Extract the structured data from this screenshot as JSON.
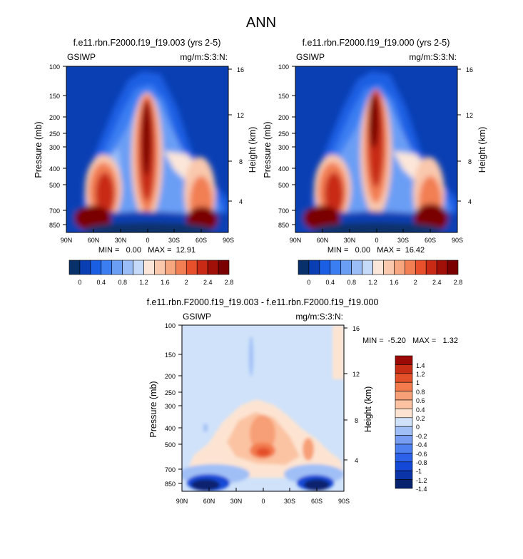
{
  "page_title": "ANN",
  "colors": {
    "field_levels": [
      "#08306b",
      "#0a3fb4",
      "#1a5ee3",
      "#3a7ef2",
      "#6a9ef5",
      "#9abdf7",
      "#c5daf9",
      "#fbe6d9",
      "#f9c8ad",
      "#f7a77f",
      "#f27e53",
      "#e8502c",
      "#c82a16",
      "#a01008",
      "#7a0000"
    ],
    "diff_levels": [
      "#08236e",
      "#0a34a8",
      "#1448d6",
      "#2c62ea",
      "#4e80f0",
      "#779ef3",
      "#a0bff6",
      "#cfe2fa",
      "#fde4d2",
      "#fbc3a2",
      "#f79f76",
      "#f27a4d",
      "#e4502a",
      "#c72d14",
      "#9b0a06"
    ]
  },
  "chart_data": [
    {
      "type": "contour",
      "id": "control",
      "title": "f.e11.rbn.F2000.f19_f19.003 (yrs 2-5)",
      "left_label": "GSIWP",
      "right_label": "mg/m:S:3:N:",
      "x_tick_labels": [
        "90N",
        "60N",
        "30N",
        "0",
        "30S",
        "60S",
        "90S"
      ],
      "pressure_levels": [
        100,
        150,
        200,
        250,
        300,
        400,
        500,
        700,
        850
      ],
      "pressure_labels": [
        "100",
        "150",
        "200",
        "250",
        "300",
        "400",
        "500",
        "700",
        "850"
      ],
      "height_ticks_km": [
        4,
        8,
        12,
        16
      ],
      "height_labels": [
        "4",
        "8",
        "12",
        "16"
      ],
      "ylabel": "Pressure (mb)",
      "ylabel_right": "Height (km)",
      "stats": "MIN =   0.00   MAX =  12.91",
      "colorbar_labels": [
        "0",
        "0.4",
        "0.8",
        "1.2",
        "1.6",
        "2",
        "2.4",
        "2.8"
      ]
    },
    {
      "type": "contour",
      "id": "test",
      "title": "f.e11.rbn.F2000.f19_f19.000 (yrs 2-5)",
      "left_label": "GSIWP",
      "right_label": "mg/m:S:3:N:",
      "x_tick_labels": [
        "90N",
        "60N",
        "30N",
        "0",
        "30S",
        "60S",
        "90S"
      ],
      "pressure_levels": [
        100,
        150,
        200,
        250,
        300,
        400,
        500,
        700,
        850
      ],
      "pressure_labels": [
        "100",
        "150",
        "200",
        "250",
        "300",
        "400",
        "500",
        "700",
        "850"
      ],
      "height_ticks_km": [
        4,
        8,
        12,
        16
      ],
      "height_labels": [
        "4",
        "8",
        "12",
        "16"
      ],
      "ylabel": "Pressure (mb)",
      "ylabel_right": "Height (km)",
      "stats": "MIN =   0.00   MAX =  16.42",
      "colorbar_labels": [
        "0",
        "0.4",
        "0.8",
        "1.2",
        "1.6",
        "2",
        "2.4",
        "2.8"
      ]
    },
    {
      "type": "contour",
      "id": "difference",
      "title": "f.e11.rbn.F2000.f19_f19.003 - f.e11.rbn.F2000.f19_f19.000",
      "left_label": "GSIWP",
      "right_label": "mg/m:S:3:N:",
      "x_tick_labels": [
        "90N",
        "60N",
        "30N",
        "0",
        "30S",
        "60S",
        "90S"
      ],
      "pressure_levels": [
        100,
        150,
        200,
        250,
        300,
        400,
        500,
        700,
        850
      ],
      "pressure_labels": [
        "100",
        "150",
        "200",
        "250",
        "300",
        "400",
        "500",
        "700",
        "850"
      ],
      "height_ticks_km": [
        4,
        8,
        12,
        16
      ],
      "height_labels": [
        "4",
        "8",
        "12",
        "16"
      ],
      "ylabel": "Pressure (mb)",
      "ylabel_right": "Height (km)",
      "stats": "MIN =  -5.20   MAX =   1.32",
      "colorbar_labels": [
        "1.4",
        "1.2",
        "1",
        "0.8",
        "0.6",
        "0.4",
        "0.2",
        "0",
        "-0.2",
        "-0.4",
        "-0.6",
        "-0.8",
        "-1",
        "-1.2",
        "-1.4"
      ]
    }
  ]
}
